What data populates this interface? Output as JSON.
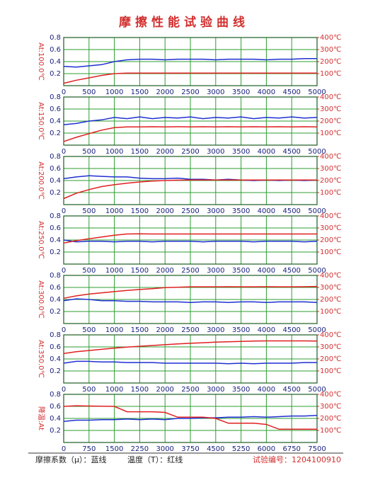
{
  "title": "摩擦性能试验曲线",
  "footer": {
    "left": "摩擦系数（μ）：蓝线",
    "middle": "温度（T）：红线",
    "right": "试验编号：1204100910"
  },
  "chart_data": [
    {
      "type": "line",
      "y_label": "At:100.0℃",
      "x": [
        0,
        250,
        500,
        750,
        1000,
        1250,
        1500,
        1750,
        2000,
        2250,
        2500,
        2750,
        3000,
        3250,
        3500,
        3750,
        4000,
        4250,
        4500,
        4750,
        5000
      ],
      "xlim": [
        0,
        5000
      ],
      "xticks": [
        0,
        500,
        1000,
        1500,
        2000,
        2500,
        3000,
        3500,
        4000,
        4500,
        5000
      ],
      "ylim": [
        0,
        0.8
      ],
      "yticks": [
        0.2,
        0.4,
        0.6,
        0.8
      ],
      "y2lim": [
        0,
        400
      ],
      "y2ticks": [
        {
          "value": 100,
          "label": "100℃"
        },
        {
          "value": 200,
          "label": "200℃"
        },
        {
          "value": 300,
          "label": "300℃"
        },
        {
          "value": 400,
          "label": "400℃"
        }
      ],
      "grid": true,
      "series": [
        {
          "color": "#1f2fd0",
          "values": [
            0.32,
            0.31,
            0.33,
            0.35,
            0.4,
            0.43,
            0.44,
            0.44,
            0.43,
            0.44,
            0.44,
            0.44,
            0.43,
            0.44,
            0.44,
            0.44,
            0.43,
            0.44,
            0.44,
            0.45,
            0.45
          ]
        },
        {
          "color": "#e02020",
          "axis": "y2",
          "values": [
            20,
            45,
            65,
            85,
            100,
            105,
            105,
            105,
            105,
            105,
            105,
            104,
            105,
            105,
            105,
            105,
            105,
            104,
            105,
            105,
            105
          ]
        }
      ]
    },
    {
      "type": "line",
      "y_label": "At:150.0℃",
      "x": [
        0,
        250,
        500,
        750,
        1000,
        1250,
        1500,
        1750,
        2000,
        2250,
        2500,
        2750,
        3000,
        3250,
        3500,
        3750,
        4000,
        4250,
        4500,
        4750,
        5000
      ],
      "xlim": [
        0,
        5000
      ],
      "xticks": [
        0,
        500,
        1000,
        1500,
        2000,
        2500,
        3000,
        3500,
        4000,
        4500,
        5000
      ],
      "ylim": [
        0,
        0.8
      ],
      "yticks": [
        0.2,
        0.4,
        0.6,
        0.8
      ],
      "y2lim": [
        0,
        400
      ],
      "y2ticks": [
        {
          "value": 100,
          "label": "100℃"
        },
        {
          "value": 200,
          "label": "200℃"
        },
        {
          "value": 300,
          "label": "300℃"
        },
        {
          "value": 400,
          "label": "400℃"
        }
      ],
      "grid": true,
      "series": [
        {
          "color": "#1f2fd0",
          "values": [
            0.34,
            0.36,
            0.4,
            0.42,
            0.46,
            0.44,
            0.47,
            0.44,
            0.46,
            0.45,
            0.47,
            0.44,
            0.46,
            0.45,
            0.47,
            0.44,
            0.46,
            0.45,
            0.47,
            0.45,
            0.46
          ]
        },
        {
          "color": "#e02020",
          "axis": "y2",
          "values": [
            30,
            65,
            95,
            125,
            145,
            152,
            152,
            153,
            152,
            153,
            152,
            153,
            152,
            153,
            152,
            153,
            152,
            153,
            152,
            153,
            152
          ]
        }
      ]
    },
    {
      "type": "line",
      "y_label": "At:200.0℃",
      "x": [
        0,
        250,
        500,
        750,
        1000,
        1250,
        1500,
        1750,
        2000,
        2250,
        2500,
        2750,
        3000,
        3250,
        3500,
        3750,
        4000,
        4250,
        4500,
        4750,
        5000
      ],
      "xlim": [
        0,
        5000
      ],
      "xticks": [
        0,
        500,
        1000,
        1500,
        2000,
        2500,
        3000,
        3500,
        4000,
        4500,
        5000
      ],
      "ylim": [
        0,
        0.8
      ],
      "yticks": [
        0.2,
        0.4,
        0.6,
        0.8
      ],
      "y2lim": [
        0,
        400
      ],
      "y2ticks": [
        {
          "value": 100,
          "label": "100℃"
        },
        {
          "value": 200,
          "label": "200℃"
        },
        {
          "value": 300,
          "label": "300℃"
        },
        {
          "value": 400,
          "label": "400℃"
        }
      ],
      "grid": true,
      "series": [
        {
          "color": "#1f2fd0",
          "values": [
            0.43,
            0.46,
            0.48,
            0.47,
            0.46,
            0.46,
            0.44,
            0.43,
            0.43,
            0.44,
            0.42,
            0.42,
            0.41,
            0.42,
            0.41,
            0.4,
            0.41,
            0.4,
            0.41,
            0.4,
            0.41
          ]
        },
        {
          "color": "#e02020",
          "axis": "y2",
          "values": [
            50,
            95,
            125,
            150,
            165,
            178,
            188,
            195,
            200,
            203,
            204,
            205,
            205,
            205,
            204,
            205,
            205,
            205,
            205,
            205,
            205
          ]
        }
      ]
    },
    {
      "type": "line",
      "y_label": "At:250.0℃",
      "x": [
        0,
        250,
        500,
        750,
        1000,
        1250,
        1500,
        1750,
        2000,
        2250,
        2500,
        2750,
        3000,
        3250,
        3500,
        3750,
        4000,
        4250,
        4500,
        4750,
        5000
      ],
      "xlim": [
        0,
        5000
      ],
      "xticks": [
        0,
        500,
        1000,
        1500,
        2000,
        2500,
        3000,
        3500,
        4000,
        4500,
        5000
      ],
      "ylim": [
        0,
        0.8
      ],
      "yticks": [
        0.2,
        0.4,
        0.6,
        0.8
      ],
      "y2lim": [
        0,
        400
      ],
      "y2ticks": [
        {
          "value": 100,
          "label": "100℃"
        },
        {
          "value": 200,
          "label": "200℃"
        },
        {
          "value": 300,
          "label": "300℃"
        },
        {
          "value": 400,
          "label": "400℃"
        }
      ],
      "grid": true,
      "series": [
        {
          "color": "#1f2fd0",
          "values": [
            0.4,
            0.37,
            0.38,
            0.38,
            0.37,
            0.38,
            0.38,
            0.37,
            0.38,
            0.38,
            0.38,
            0.37,
            0.38,
            0.38,
            0.38,
            0.37,
            0.38,
            0.38,
            0.38,
            0.37,
            0.38
          ]
        },
        {
          "color": "#e02020",
          "axis": "y2",
          "values": [
            175,
            195,
            210,
            225,
            240,
            250,
            252,
            250,
            250,
            250,
            250,
            250,
            250,
            250,
            250,
            250,
            250,
            250,
            250,
            250,
            250
          ]
        }
      ]
    },
    {
      "type": "line",
      "y_label": "At:300.0℃",
      "x": [
        0,
        250,
        500,
        750,
        1000,
        1250,
        1500,
        1750,
        2000,
        2250,
        2500,
        2750,
        3000,
        3250,
        3500,
        3750,
        4000,
        4250,
        4500,
        4750,
        5000
      ],
      "xlim": [
        0,
        5000
      ],
      "xticks": [
        0,
        500,
        1000,
        1500,
        2000,
        2500,
        3000,
        3500,
        4000,
        4500,
        5000
      ],
      "ylim": [
        0,
        0.8
      ],
      "yticks": [
        0.2,
        0.4,
        0.6,
        0.8
      ],
      "y2lim": [
        0,
        400
      ],
      "y2ticks": [
        {
          "value": 100,
          "label": "100℃"
        },
        {
          "value": 200,
          "label": "200℃"
        },
        {
          "value": 300,
          "label": "300℃"
        },
        {
          "value": 400,
          "label": "400℃"
        }
      ],
      "grid": true,
      "series": [
        {
          "color": "#1f2fd0",
          "values": [
            0.38,
            0.41,
            0.4,
            0.38,
            0.38,
            0.37,
            0.37,
            0.36,
            0.36,
            0.36,
            0.35,
            0.36,
            0.36,
            0.35,
            0.36,
            0.36,
            0.35,
            0.36,
            0.36,
            0.36,
            0.35
          ]
        },
        {
          "color": "#e02020",
          "axis": "y2",
          "values": [
            210,
            230,
            245,
            255,
            265,
            275,
            283,
            290,
            298,
            302,
            305,
            305,
            305,
            306,
            305,
            305,
            306,
            305,
            305,
            306,
            308
          ]
        }
      ]
    },
    {
      "type": "line",
      "y_label": "At:350.0℃",
      "x": [
        0,
        250,
        500,
        750,
        1000,
        1250,
        1500,
        1750,
        2000,
        2250,
        2500,
        2750,
        3000,
        3250,
        3500,
        3750,
        4000,
        4250,
        4500,
        4750,
        5000
      ],
      "xlim": [
        0,
        5000
      ],
      "xticks": [
        0,
        500,
        1000,
        1500,
        2000,
        2500,
        3000,
        3500,
        4000,
        4500,
        5000
      ],
      "ylim": [
        0,
        0.8
      ],
      "yticks": [
        0.2,
        0.4,
        0.6,
        0.8
      ],
      "y2lim": [
        0,
        400
      ],
      "y2ticks": [
        {
          "value": 100,
          "label": "100℃"
        },
        {
          "value": 200,
          "label": "200℃"
        },
        {
          "value": 300,
          "label": "300℃"
        },
        {
          "value": 400,
          "label": "400℃"
        }
      ],
      "grid": true,
      "series": [
        {
          "color": "#1f2fd0",
          "values": [
            0.33,
            0.36,
            0.36,
            0.35,
            0.35,
            0.34,
            0.34,
            0.34,
            0.33,
            0.33,
            0.33,
            0.33,
            0.33,
            0.32,
            0.33,
            0.32,
            0.33,
            0.33,
            0.33,
            0.34,
            0.34
          ]
        },
        {
          "color": "#e02020",
          "axis": "y2",
          "values": [
            245,
            260,
            270,
            280,
            290,
            298,
            305,
            312,
            318,
            325,
            330,
            335,
            340,
            343,
            346,
            348,
            350,
            350,
            350,
            350,
            348
          ]
        }
      ]
    },
    {
      "type": "line",
      "y_label": "降温:At",
      "x": [
        0,
        375,
        750,
        1125,
        1500,
        1875,
        2250,
        2625,
        3000,
        3375,
        3750,
        4125,
        4500,
        4875,
        5250,
        5625,
        6000,
        6375,
        6750,
        7125,
        7500
      ],
      "xlim": [
        0,
        7500
      ],
      "xticks": [
        0,
        750,
        1500,
        2250,
        3000,
        3750,
        4500,
        5250,
        6000,
        6750,
        7500
      ],
      "ylim": [
        0,
        0.8
      ],
      "yticks": [
        0.2,
        0.4,
        0.6,
        0.8
      ],
      "y2lim": [
        0,
        400
      ],
      "y2ticks": [
        {
          "value": 100,
          "label": "100℃"
        },
        {
          "value": 200,
          "label": "200℃"
        },
        {
          "value": 300,
          "label": "300℃"
        },
        {
          "value": 400,
          "label": "400℃"
        }
      ],
      "grid": true,
      "series": [
        {
          "color": "#1f2fd0",
          "values": [
            0.35,
            0.37,
            0.37,
            0.38,
            0.38,
            0.39,
            0.38,
            0.39,
            0.38,
            0.4,
            0.4,
            0.41,
            0.41,
            0.42,
            0.42,
            0.43,
            0.42,
            0.43,
            0.44,
            0.44,
            0.45
          ]
        },
        {
          "color": "#e02020",
          "axis": "y2",
          "values": [
            300,
            305,
            303,
            302,
            300,
            255,
            255,
            255,
            250,
            210,
            210,
            210,
            200,
            160,
            160,
            160,
            150,
            110,
            110,
            110,
            110
          ]
        }
      ]
    }
  ]
}
